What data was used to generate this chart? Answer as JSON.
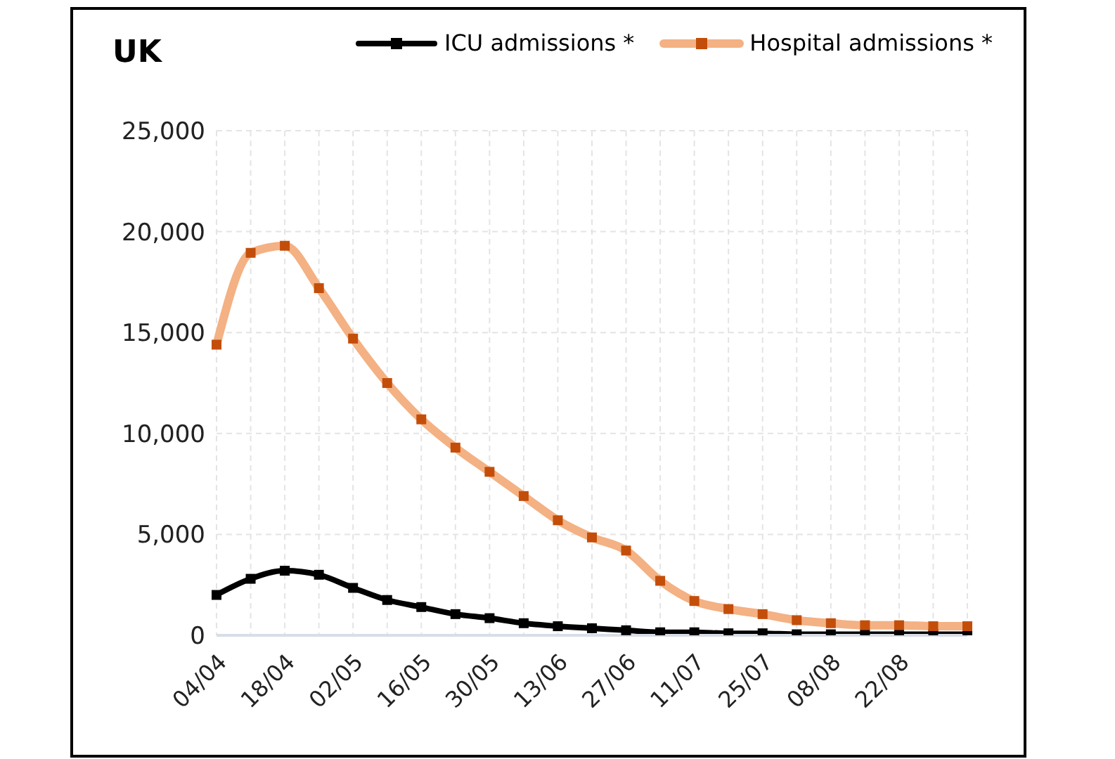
{
  "chart_data": {
    "type": "line",
    "title": "UK",
    "categories": [
      "04/04",
      null,
      "18/04",
      null,
      "02/05",
      null,
      "16/05",
      null,
      "30/05",
      null,
      "13/06",
      null,
      "27/06",
      null,
      "11/07",
      null,
      "25/07",
      null,
      "08/08",
      null,
      "22/08",
      null,
      null
    ],
    "series": [
      {
        "name": "ICU admissions *",
        "color": "#000000",
        "values": [
          2000,
          2800,
          3200,
          3000,
          2350,
          1750,
          1400,
          1050,
          850,
          600,
          450,
          350,
          250,
          150,
          150,
          100,
          100,
          50,
          50,
          50,
          50,
          50,
          50
        ]
      },
      {
        "name": "Hospital admissions *",
        "color": "#f4b183",
        "values": [
          14400,
          18950,
          19300,
          17200,
          14700,
          12500,
          10700,
          9300,
          8100,
          6900,
          5700,
          4850,
          4200,
          2700,
          1700,
          1300,
          1050,
          750,
          600,
          500,
          500,
          450,
          450
        ]
      }
    ],
    "ylim": [
      0,
      25000
    ],
    "yticks": [
      0,
      {
        "value": 5000,
        "label": "5,000"
      },
      {
        "value": 10000,
        "label": "10,000"
      },
      {
        "value": 15000,
        "label": "15,000"
      },
      {
        "value": 20000,
        "label": "20,000"
      },
      {
        "value": 25000,
        "label": "25,000"
      }
    ],
    "grid": true,
    "legend": "top",
    "marker": "square",
    "line_style": "solid"
  }
}
